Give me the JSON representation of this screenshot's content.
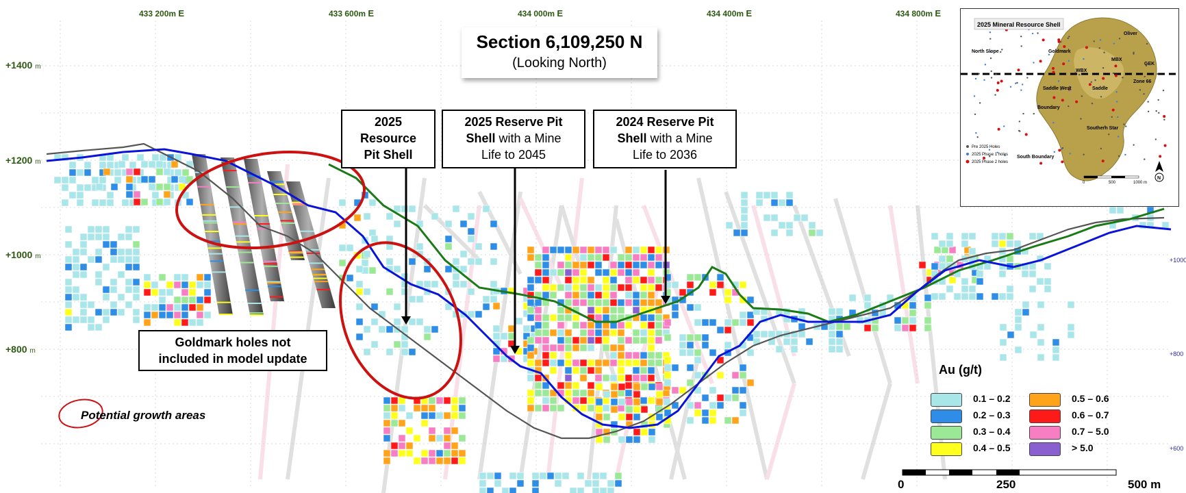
{
  "title": {
    "main": "Section 6,109,250 N",
    "sub": "(Looking North)"
  },
  "easting_labels": [
    {
      "prefix": "433",
      "rest": "200m",
      "suffix": "E"
    },
    {
      "prefix": "433",
      "rest": "600m",
      "suffix": "E"
    },
    {
      "prefix": "434",
      "rest": "000m",
      "suffix": "E"
    },
    {
      "prefix": "434",
      "rest": "400m",
      "suffix": "E"
    },
    {
      "prefix": "434",
      "rest": "800m",
      "suffix": "E"
    }
  ],
  "elevation_labels": [
    {
      "value": "+1400",
      "unit": "m"
    },
    {
      "value": "+1200",
      "unit": "m"
    },
    {
      "value": "+1000",
      "unit": "m"
    },
    {
      "value": "+800",
      "unit": "m"
    }
  ],
  "right_labels": [
    "+1000",
    "+800",
    "+600"
  ],
  "callouts": {
    "resource_2025": {
      "line1": "2025",
      "line2": "Resource",
      "line3": "Pit Shell"
    },
    "reserve_2025": {
      "bold": "2025 Reserve Pit",
      "bold2": "Shell",
      "rest": "with a Mine",
      "line3": "Life to 2045"
    },
    "reserve_2024": {
      "bold": "2024 Reserve Pit",
      "bold2": "Shell",
      "rest": "with a Mine",
      "line3": "Life to 2036"
    },
    "goldmark": {
      "line1": "Goldmark holes not",
      "line2": "included in model update"
    }
  },
  "growth_label": "Potential growth areas",
  "legend": {
    "title": "Au (g/t)",
    "items": [
      {
        "label": "0.1 – 0.2",
        "color": "#a8e6ea"
      },
      {
        "label": "0.2 – 0.3",
        "color": "#2e8de6"
      },
      {
        "label": "0.3 – 0.4",
        "color": "#9be896"
      },
      {
        "label": "0.4 – 0.5",
        "color": "#ffff1e"
      },
      {
        "label": "0.5 – 0.6",
        "color": "#ffa31a"
      },
      {
        "label": "0.6 – 0.7",
        "color": "#ff1a1a"
      },
      {
        "label": "0.7 – 5.0",
        "color": "#f77ec2"
      },
      {
        "label": "> 5.0",
        "color": "#8a5fd0"
      }
    ]
  },
  "scale": {
    "labels": [
      "0",
      "250",
      "500 m"
    ]
  },
  "inset": {
    "title": "2025 Mineral Resource Shell",
    "areas": [
      "Oliver",
      "North Slope",
      "Goldmark",
      "MBX",
      "GEK",
      "WBX",
      "Zone 66",
      "Saddle West",
      "Saddle",
      "Boundary",
      "Southern Star",
      "South Boundary"
    ],
    "legend": [
      "Pre 2025 Holes",
      "2025 Phase 1 holes",
      "2025 Phase 2 holes"
    ],
    "scale": [
      "0",
      "500",
      "1000 m"
    ],
    "north": "N"
  },
  "colors": {
    "resource_2025": "#0a14d8",
    "reserve_2025": "#1a7a16",
    "reserve_2024": "#555555",
    "growth_ellipse": "#cc1111",
    "coord_green": "#2d5a12"
  }
}
